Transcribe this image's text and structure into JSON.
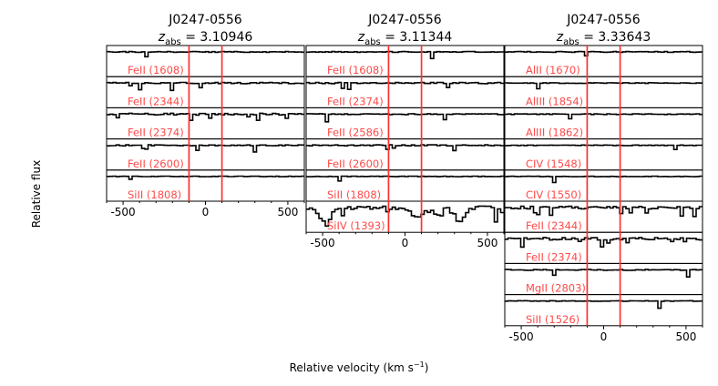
{
  "figure": {
    "ylabel": "Relative flux",
    "xlabel": "Relative velocity (km s",
    "xlabel_sup": "−1",
    "xlabel_end": ")",
    "line_label_color": "#ff4a4a",
    "marker_color": "#ff3030",
    "spectrum_color": "#000000"
  },
  "chart_data": [
    {
      "type": "line",
      "title": "J0247-0556",
      "z_prefix": "z",
      "z_sub": "abs",
      "z_value": " = 3.10946",
      "xlim": [
        -600,
        600
      ],
      "x_ticks": [
        -500,
        0,
        500
      ],
      "x_tick_labels": [
        "-500",
        "0",
        "500"
      ],
      "vertical_markers": [
        -100,
        100
      ],
      "panels": [
        {
          "label": "FeII (1608)",
          "seed": 11,
          "noise": 0.45,
          "spikes": 1
        },
        {
          "label": "FeII (2344)",
          "seed": 23,
          "noise": 0.7,
          "spikes": 4
        },
        {
          "label": "FeII (2374)",
          "seed": 37,
          "noise": 1.0,
          "spikes": 6
        },
        {
          "label": "FeII (2600)",
          "seed": 41,
          "noise": 0.6,
          "spikes": 4
        },
        {
          "label": "SiII (1808)",
          "seed": 53,
          "noise": 0.35,
          "spikes": 1
        }
      ]
    },
    {
      "type": "line",
      "title": "J0247-0556",
      "z_prefix": "z",
      "z_sub": "abs",
      "z_value": " = 3.11344",
      "xlim": [
        -600,
        600
      ],
      "x_ticks": [
        -500,
        0,
        500
      ],
      "x_tick_labels": [
        "-500",
        "0",
        "500"
      ],
      "vertical_markers": [
        -100,
        100
      ],
      "panels": [
        {
          "label": "FeII (1608)",
          "seed": 61,
          "noise": 0.45,
          "spikes": 1
        },
        {
          "label": "FeII (2374)",
          "seed": 71,
          "noise": 0.75,
          "spikes": 4
        },
        {
          "label": "FeII (2586)",
          "seed": 83,
          "noise": 0.55,
          "spikes": 2
        },
        {
          "label": "FeII (2600)",
          "seed": 97,
          "noise": 0.6,
          "spikes": 3
        },
        {
          "label": "SiII (1808)",
          "seed": 101,
          "noise": 0.35,
          "spikes": 1
        },
        {
          "label": "SiIV (1393)",
          "seed": 113,
          "noise": 2.2,
          "spikes": 6,
          "absorption": true
        }
      ]
    },
    {
      "type": "line",
      "title": "J0247-0556",
      "z_prefix": "z",
      "z_sub": "abs",
      "z_value": " = 3.33643",
      "xlim": [
        -600,
        600
      ],
      "x_ticks": [
        -500,
        0,
        500
      ],
      "x_tick_labels": [
        "-500",
        "0",
        "500"
      ],
      "vertical_markers": [
        -100,
        100
      ],
      "panels": [
        {
          "label": "AlII (1670)",
          "seed": 127,
          "noise": 0.45,
          "spikes": 1
        },
        {
          "label": "AlIII (1854)",
          "seed": 131,
          "noise": 0.4,
          "spikes": 1
        },
        {
          "label": "AlIII (1862)",
          "seed": 139,
          "noise": 0.4,
          "spikes": 1
        },
        {
          "label": "CIV (1548)",
          "seed": 149,
          "noise": 0.35,
          "spikes": 1
        },
        {
          "label": "CIV (1550)",
          "seed": 151,
          "noise": 0.35,
          "spikes": 1
        },
        {
          "label": "FeII (2344)",
          "seed": 163,
          "noise": 1.6,
          "spikes": 8
        },
        {
          "label": "FeII (2374)",
          "seed": 173,
          "noise": 1.4,
          "spikes": 7
        },
        {
          "label": "MgII (2803)",
          "seed": 181,
          "noise": 0.5,
          "spikes": 2
        },
        {
          "label": "SiII (1526)",
          "seed": 191,
          "noise": 0.35,
          "spikes": 1
        }
      ]
    }
  ]
}
